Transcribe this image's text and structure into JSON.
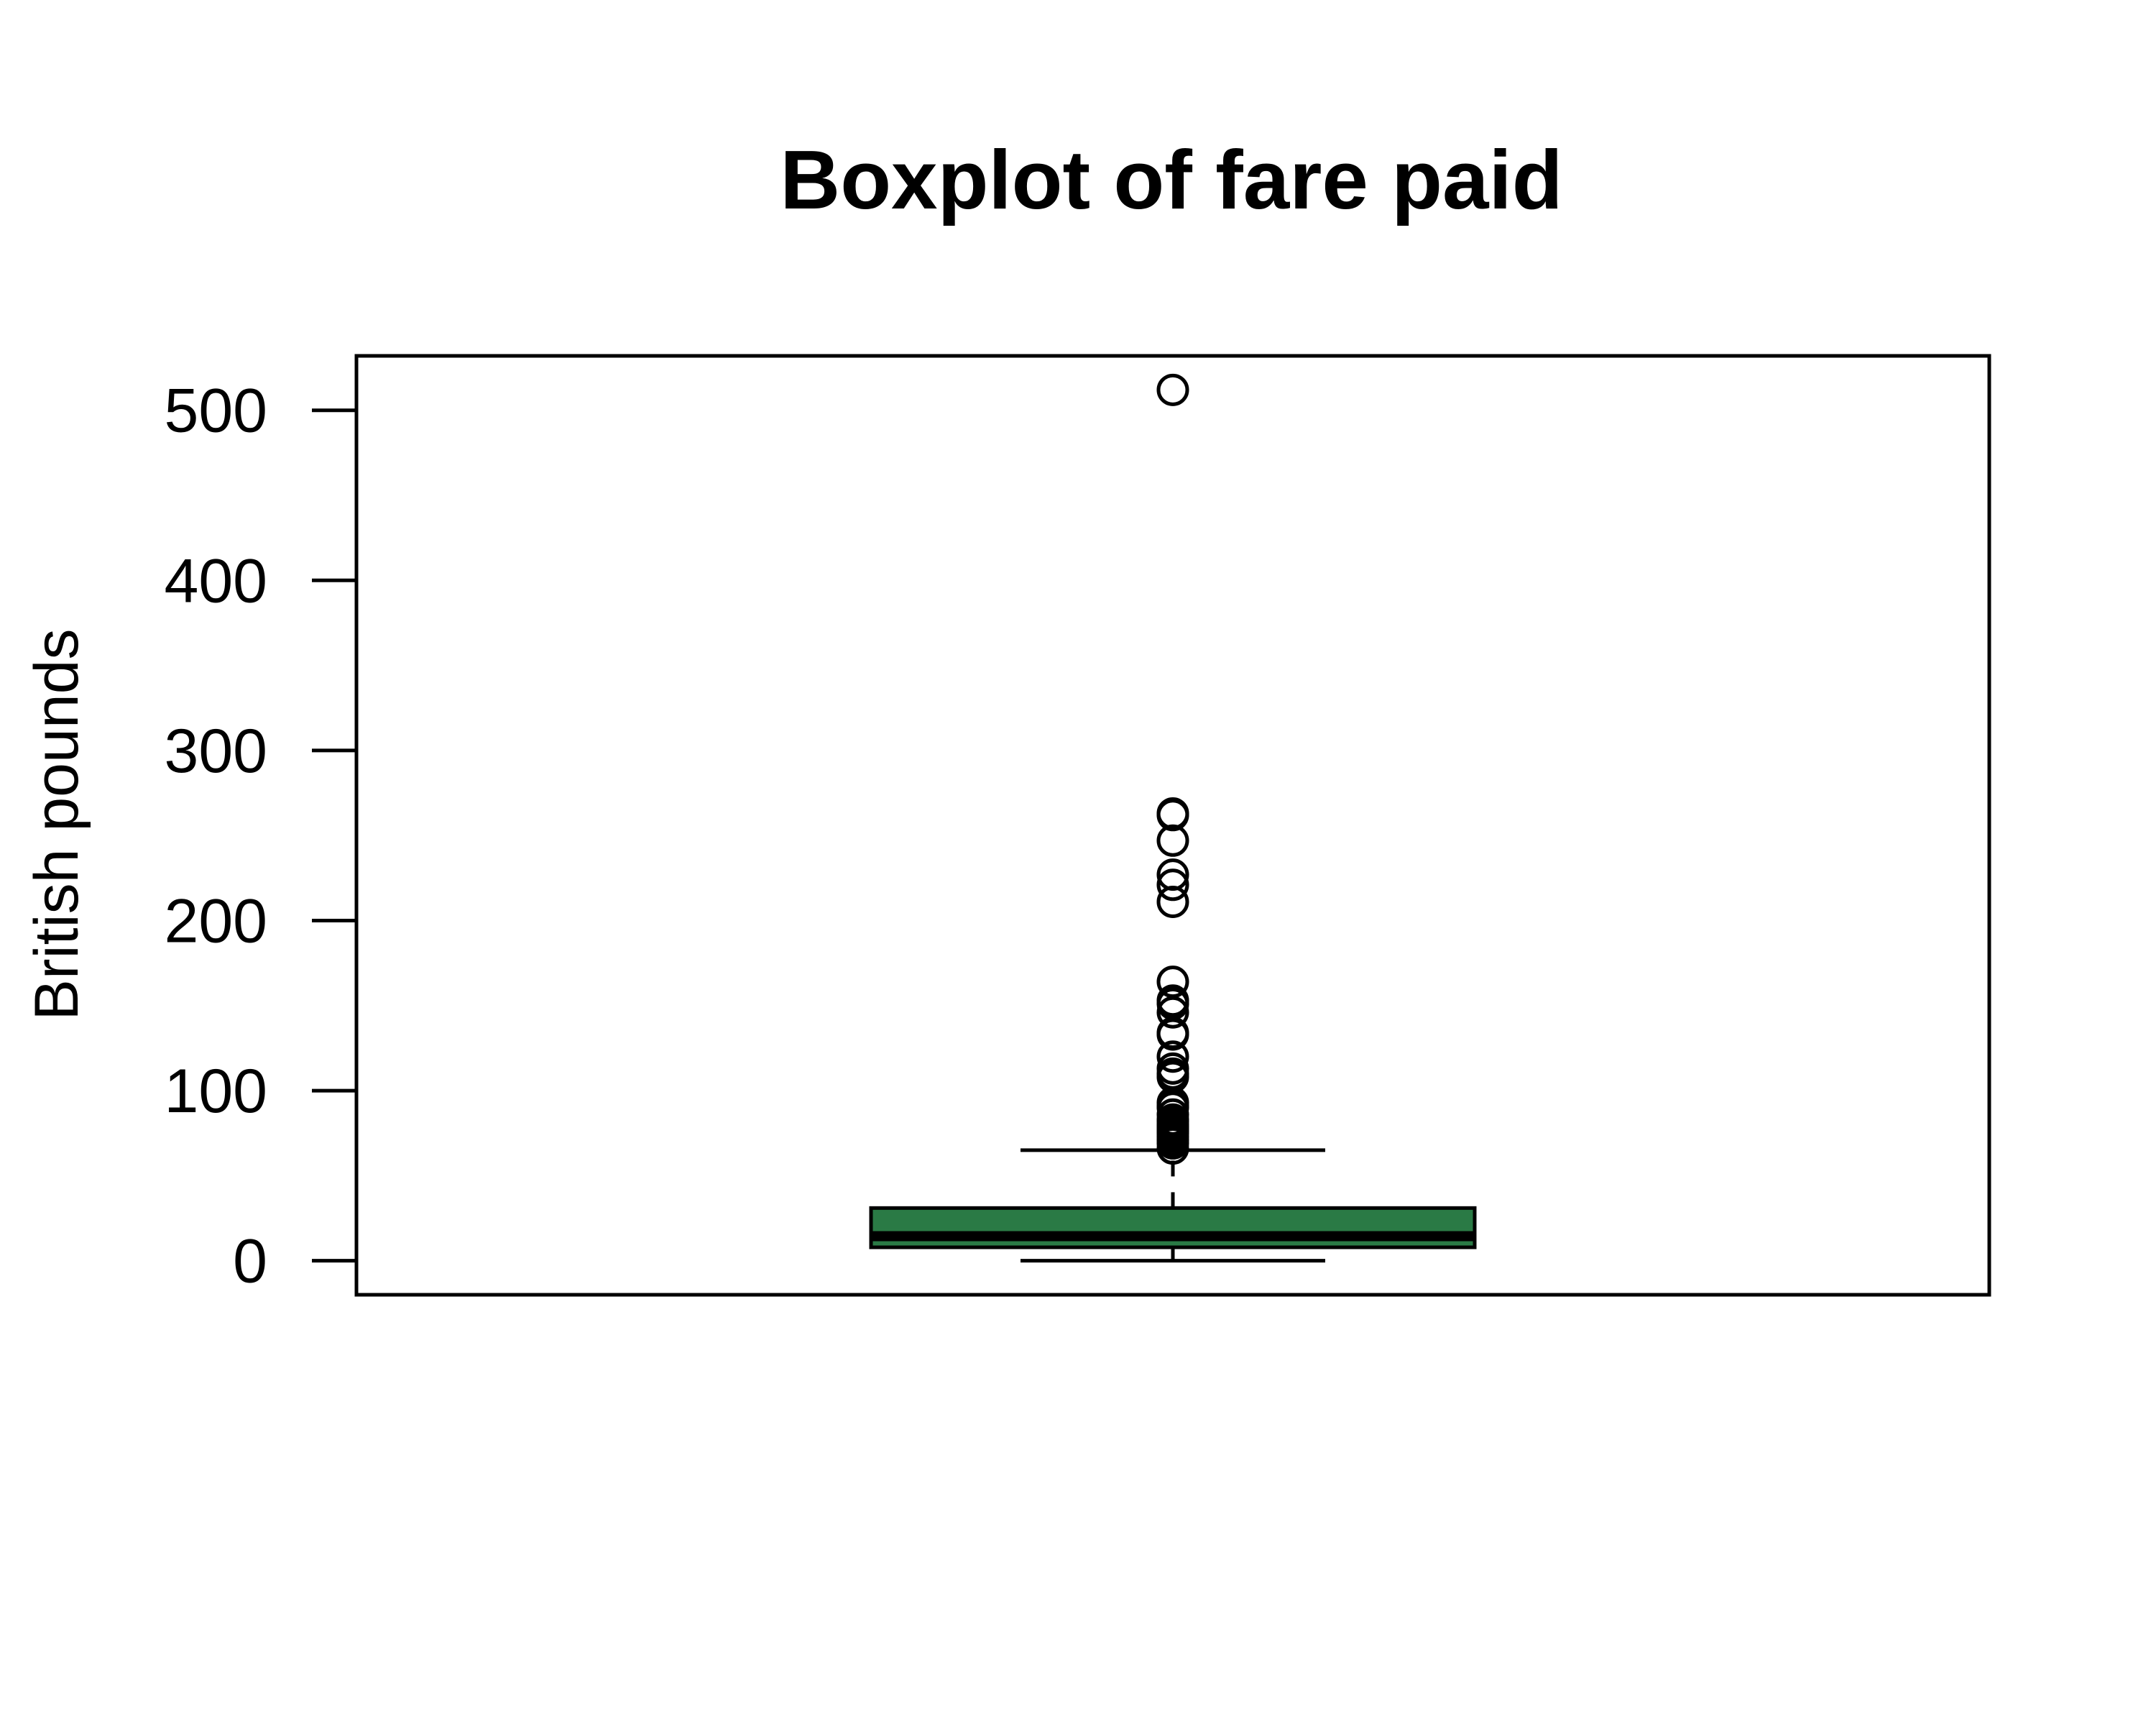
{
  "chart_data": {
    "type": "boxplot",
    "title": "Boxplot of fare paid",
    "xlabel": "",
    "ylabel": "British pounds",
    "ylim": [
      -20,
      532
    ],
    "yticks": [
      0,
      100,
      200,
      300,
      400,
      500
    ],
    "yticklabels": [
      "0",
      "100",
      "200",
      "300",
      "400",
      "500"
    ],
    "box": {
      "min": 0,
      "q1": 7.9,
      "median": 14.45,
      "q3": 31,
      "whisker_high": 65,
      "fill_color": "#2a7a45",
      "outliers": [
        512,
        263,
        262,
        247,
        227,
        221,
        211,
        164,
        153,
        151,
        146,
        134,
        133,
        120,
        113,
        110,
        108,
        93,
        91,
        90,
        86,
        83,
        82,
        80,
        79,
        78,
        77,
        76,
        75,
        73,
        71,
        69,
        66
      ]
    },
    "grid": false,
    "legend": "none"
  }
}
